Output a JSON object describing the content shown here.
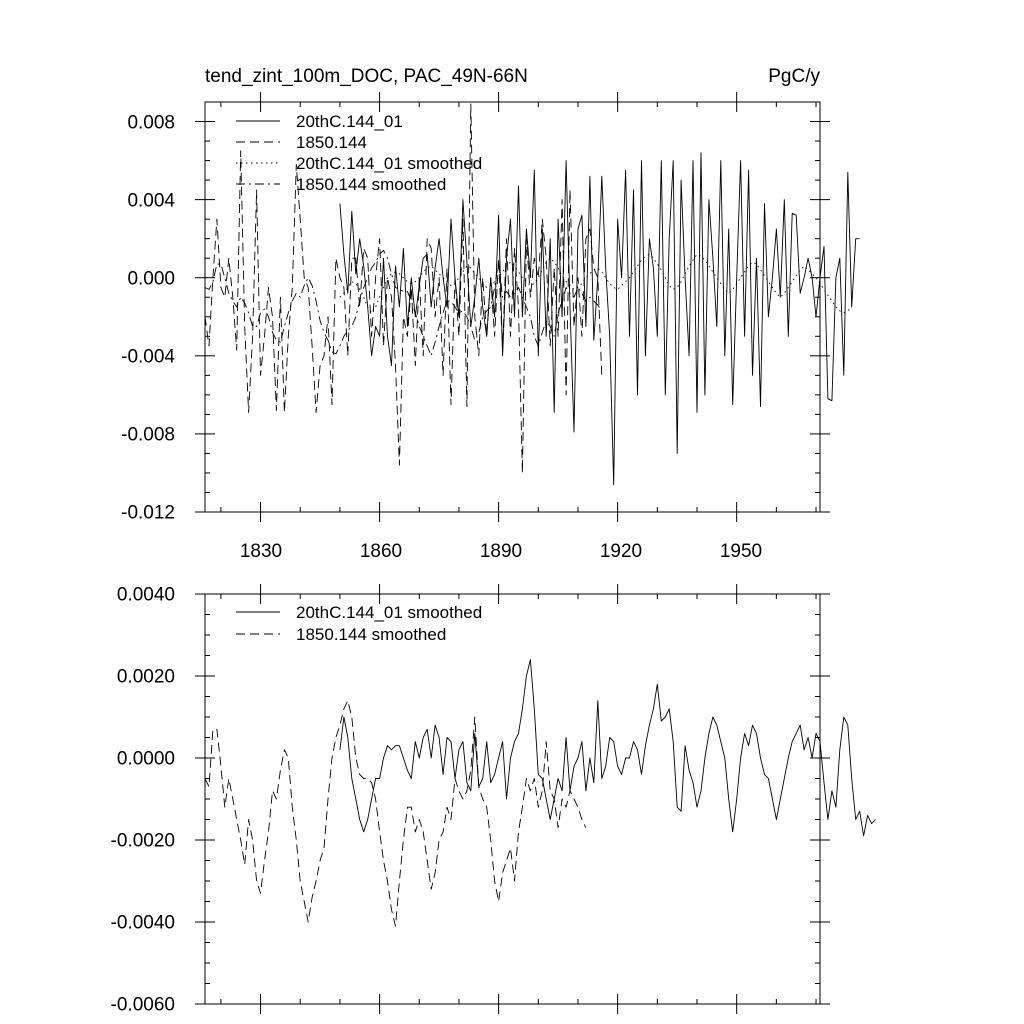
{
  "chart_data": [
    {
      "type": "line",
      "title": "tend_zint_100m_DOC, PAC_49N-66N",
      "units": "PgC/y",
      "xlabel": "",
      "ylabel": "",
      "xlim": [
        1816,
        1971
      ],
      "ylim": [
        -0.012,
        0.009
      ],
      "x_ticks": [
        1830,
        1860,
        1890,
        1920,
        1950
      ],
      "y_ticks": [
        0.008,
        0.004,
        0.0,
        -0.004,
        -0.008,
        -0.012
      ],
      "x_tick_labels": [
        "1830",
        "1860",
        "1890",
        "1920",
        "1950"
      ],
      "y_tick_labels": [
        "0.008",
        "0.004",
        "0.000",
        "-0.004",
        "-0.008",
        "-0.012"
      ],
      "legend": [
        "20thC.144_01",
        "1850.144",
        "20thC.144_01 smoothed",
        "1850.144 smoothed"
      ],
      "series": [
        {
          "name": "20thC.144_01",
          "dash": "solid",
          "x_start": 1850,
          "values": [
            0.0038,
            0.0012,
            -0.0008,
            0.0034,
            0.0002,
            0.002,
            0.0006,
            -0.0015,
            -0.004,
            -0.0025,
            -0.003,
            0.001,
            -0.003,
            -0.0045,
            0.0006,
            -0.0015,
            0.0015,
            -0.0025,
            0.0,
            -0.002,
            -0.0004,
            0.001,
            0.0012,
            -0.0015,
            0.0005,
            0.002,
            0.0,
            -0.0015,
            0.003,
            0.0,
            -0.002,
            0.004,
            0.0008,
            -0.0025,
            -0.001,
            0.001,
            -0.0015,
            -0.003,
            0.0,
            -0.002,
            0.0032,
            -0.004,
            0.001,
            0.003,
            -0.002,
            0.0047,
            -0.002,
            0.0025,
            0.0,
            0.0055,
            -0.004,
            0.0025,
            -0.003,
            0.002,
            -0.0069,
            0.003,
            -0.002,
            0.006,
            -0.0015,
            -0.0079,
            0.0025,
            0.0032,
            -0.0025,
            0.0052,
            -0.0032,
            0.0,
            0.0052,
            0.0005,
            -0.003,
            -0.0106,
            0.003,
            0.0,
            0.0055,
            -0.003,
            0.0045,
            -0.006,
            0.006,
            -0.004,
            0.002,
            0.0005,
            -0.003,
            0.006,
            -0.006,
            0.002,
            0.006,
            -0.009,
            0.005,
            0.0,
            -0.004,
            0.006,
            -0.0069,
            0.0064,
            -0.006,
            0.004,
            0.001,
            -0.0025,
            0.006,
            -0.004,
            0.0025,
            -0.0065,
            0.0,
            0.006,
            -0.003,
            0.0055,
            -0.005,
            0.001,
            -0.0066,
            0.0038,
            -0.002,
            0.0,
            0.0025,
            -0.001,
            0.004,
            -0.003,
            0.0033,
            0.0032,
            -0.0008,
            0.0,
            0.001,
            0.0,
            -0.002,
            0.0,
            0.0016,
            -0.0062,
            -0.0063,
            0.0,
            0.001,
            -0.005,
            0.0054,
            -0.0015,
            0.002,
            0.002
          ]
        },
        {
          "name": "1850.144",
          "dash": "dashed",
          "x_start": 1816,
          "values": [
            -0.002,
            -0.0035,
            0.0,
            0.003,
            -0.0005,
            -0.001,
            0.001,
            -0.001,
            -0.0037,
            0.0065,
            -0.0025,
            -0.0069,
            -0.003,
            0.0045,
            -0.005,
            -0.003,
            -0.0005,
            -0.002,
            -0.0068,
            -0.001,
            -0.0069,
            -0.003,
            -0.0005,
            0.0058,
            0.003,
            0.0,
            -0.0005,
            -0.0035,
            -0.0069,
            -0.0045,
            -0.004,
            -0.002,
            -0.0065,
            0.001,
            0.0,
            -0.0005,
            -0.004,
            0.001,
            0.001,
            -0.0015,
            0.0015,
            0.001,
            -0.003,
            0.0,
            0.002,
            -0.0035,
            0.0,
            -0.001,
            -0.0045,
            -0.0096,
            -0.002,
            -0.003,
            -0.0005,
            -0.0045,
            0.0,
            -0.004,
            0.002,
            0.0015,
            -0.002,
            0.0,
            -0.005,
            0.0005,
            -0.0065,
            0.0,
            -0.003,
            0.003,
            -0.0066,
            0.0089,
            -0.002,
            -0.004,
            0.0,
            -0.003,
            0.0,
            -0.003,
            0.001,
            -0.0037,
            0.002,
            -0.003,
            0.0015,
            -0.0015,
            -0.01,
            0.002,
            -0.001,
            0.001,
            0.0,
            0.003,
            0.001,
            -0.0035,
            0.0005,
            -0.003,
            0.004,
            -0.006,
            0.0045,
            -0.0025,
            0.0,
            -0.003,
            0.002,
            0.0025,
            0.0005,
            0.0,
            -0.005
          ]
        },
        {
          "name": "20thC.144_01 smoothed",
          "dash": "dotted",
          "x_start": 1850,
          "values": [
            -0.001,
            -0.0008,
            -0.0005,
            -0.0002,
            -0.0003,
            -0.0006,
            -0.001,
            -0.0015,
            -0.0018,
            -0.0015,
            -0.001,
            -0.0005,
            0.0,
            0.0002,
            0.0003,
            0.0002,
            0.0,
            -0.0002,
            -0.0003,
            -0.0002,
            0.0,
            0.0003,
            0.0005,
            0.0006,
            0.0004,
            0.0002,
            0.0,
            -0.0002,
            -0.0004,
            -0.0003,
            0.0,
            0.0003,
            0.0006,
            0.0005,
            0.0002,
            0.0,
            -0.0003,
            -0.0005,
            -0.0004,
            -0.0002,
            0.0,
            0.0003,
            0.0006,
            0.0008,
            0.0006,
            0.0003,
            0.0,
            -0.0002,
            -0.0004,
            -0.0003,
            0.0,
            0.0004,
            0.0008,
            0.001,
            0.0008,
            0.0005,
            0.0001,
            -0.0002,
            -0.0004,
            -0.0006,
            -0.0005,
            -0.0003,
            0.0,
            0.0002,
            0.0004,
            0.0005,
            0.0003,
            0.0,
            -0.0003,
            -0.0005,
            -0.0006,
            -0.0004,
            -0.0002,
            0.0,
            0.0003,
            0.0006,
            0.0009,
            0.0011,
            0.0012,
            0.001,
            0.0007,
            0.0004,
            0.0,
            -0.0004,
            -0.0006,
            -0.0005,
            -0.0002,
            0.0002,
            0.0006,
            0.0009,
            0.0012,
            0.0011,
            0.0009,
            0.0006,
            0.0003,
            0.0,
            -0.0003,
            -0.0006,
            -0.0008,
            -0.0006,
            -0.0003,
            0.0,
            0.0003,
            0.0006,
            0.0008,
            0.0007,
            0.0004,
            0.0001,
            -0.0002,
            -0.0005,
            -0.0008,
            -0.001,
            -0.0008,
            -0.0005,
            -0.0002,
            0.0001,
            0.0004,
            0.0006,
            0.0004,
            0.0002,
            0.0,
            -0.0003,
            -0.0006,
            -0.0009,
            -0.0012,
            -0.0015,
            -0.0017,
            -0.0018,
            -0.0017,
            -0.0015
          ]
        },
        {
          "name": "1850.144 smoothed",
          "dash": "dashdot",
          "x_start": 1816,
          "values": [
            -0.0005,
            -0.0006,
            -0.0002,
            0.0007,
            0.0007,
            0.0,
            -0.0008,
            -0.0012,
            -0.0015,
            -0.001,
            -0.0013,
            -0.0018,
            -0.0025,
            -0.0025,
            -0.0018,
            -0.0016,
            -0.002,
            -0.0028,
            -0.0032,
            -0.0033,
            -0.0025,
            -0.0018,
            -0.0012,
            -0.0008,
            -0.001,
            -0.0004,
            0.0,
            -0.0004,
            -0.0012,
            -0.0022,
            -0.0028,
            -0.0032,
            -0.0038,
            -0.0039,
            -0.0035,
            -0.003,
            -0.0027,
            -0.0025,
            -0.002,
            -0.0012,
            -0.0005,
            0.0,
            0.0005,
            0.0008,
            0.0012,
            0.0014,
            0.001,
            0.0002,
            -0.0005,
            -0.0006,
            -0.0007,
            -0.0007,
            -0.0012,
            -0.0018,
            -0.0025,
            -0.003,
            -0.0035,
            -0.004,
            -0.0033,
            -0.0025,
            -0.0018,
            -0.0012,
            -0.0012,
            -0.0015,
            -0.0018,
            -0.0017,
            -0.002,
            -0.0025,
            -0.0032,
            -0.0028,
            -0.002,
            -0.0017,
            -0.0015,
            -0.0005,
            0.0008,
            -0.001,
            -0.0007,
            -0.001,
            -0.0008,
            -0.0005,
            -0.001,
            -0.0015,
            -0.002,
            -0.003,
            -0.0035,
            -0.0028,
            -0.0022,
            -0.0025,
            -0.003,
            -0.0018,
            -0.0012,
            -0.0005,
            -0.0008,
            -0.001,
            -0.0005,
            -0.0008,
            -0.0012,
            -0.001,
            -0.0012,
            -0.0014,
            -0.0017
          ]
        }
      ]
    },
    {
      "type": "line",
      "title": "",
      "xlabel": "",
      "ylabel": "",
      "xlim": [
        1816,
        1971
      ],
      "ylim": [
        -0.006,
        0.004
      ],
      "x_ticks": [
        1830,
        1860,
        1890,
        1920,
        1950
      ],
      "y_ticks": [
        0.004,
        0.002,
        0.0,
        -0.002,
        -0.004,
        -0.006
      ],
      "y_tick_labels": [
        "0.0040",
        "0.0020",
        "0.0000",
        "-0.0020",
        "-0.0040",
        "-0.0060"
      ],
      "legend": [
        "20thC.144_01 smoothed",
        "1850.144 smoothed"
      ],
      "series": [
        {
          "name": "20thC.144_01 smoothed",
          "dash": "solid",
          "x_start": 1850,
          "values": [
            0.0002,
            0.001,
            0.0005,
            -0.0005,
            -0.001,
            -0.0015,
            -0.0018,
            -0.0015,
            -0.001,
            -0.0005,
            -0.0005,
            0.0,
            0.0003,
            0.0002,
            0.0003,
            0.0003,
            0.0,
            -0.0003,
            -0.0005,
            0.0004,
            0.0,
            0.0005,
            0.0007,
            0.0,
            0.0008,
            0.0005,
            -0.0004,
            0.0005,
            0.0004,
            -0.0005,
            0.0002,
            0.0004,
            -0.0006,
            -0.0008,
            0.0006,
            -0.0007,
            -0.0005,
            0.0004,
            -0.0006,
            -0.0004,
            0.0,
            0.0004,
            -0.001,
            0.0,
            0.0004,
            0.0006,
            0.0012,
            0.002,
            0.0024,
            0.0012,
            -0.0004,
            -0.0005,
            -0.001,
            -0.0015,
            -0.001,
            -0.0005,
            -0.0008,
            0.0005,
            -0.0008,
            -0.0002,
            0.0,
            0.0004,
            -0.0008,
            0.0,
            -0.0006,
            0.0014,
            -0.0005,
            -0.0002,
            0.0005,
            0.0004,
            -0.0002,
            -0.0004,
            0.0,
            0.0,
            0.0004,
            0.0002,
            -0.0004,
            0.0003,
            0.0008,
            0.0012,
            0.0018,
            0.0009,
            0.001,
            0.0012,
            0.0004,
            -0.0012,
            -0.0013,
            0.0003,
            -0.0003,
            -0.0006,
            -0.0012,
            -0.0008,
            0.0,
            0.0006,
            0.001,
            0.0008,
            0.0004,
            0.0,
            -0.001,
            -0.0018,
            -0.001,
            0.0,
            0.0006,
            0.0003,
            0.0008,
            0.0006,
            0.0,
            -0.0004,
            -0.0005,
            -0.001,
            -0.0015,
            -0.001,
            -0.0005,
            0.0,
            0.0004,
            0.0006,
            0.0008,
            0.0002,
            0.0005,
            0.0,
            0.0006,
            0.0004,
            -0.0006,
            -0.0015,
            -0.0008,
            -0.0012,
            0.0002,
            0.001,
            0.0008,
            -0.0005,
            -0.0015,
            -0.0013,
            -0.0019,
            -0.0014,
            -0.0016,
            -0.0015
          ]
        },
        {
          "name": "1850.144 smoothed",
          "dash": "dashed",
          "x_start": 1816,
          "values": [
            -0.0005,
            -0.0007,
            0.0007,
            0.0007,
            -0.0002,
            -0.0012,
            -0.0005,
            -0.001,
            -0.0015,
            -0.002,
            -0.0026,
            -0.0015,
            -0.002,
            -0.003,
            -0.0033,
            -0.0025,
            -0.0018,
            -0.0008,
            -0.001,
            -0.0003,
            0.0002,
            0.0,
            -0.0012,
            -0.002,
            -0.003,
            -0.0035,
            -0.004,
            -0.0034,
            -0.003,
            -0.0025,
            -0.0022,
            -0.001,
            0.0,
            0.0005,
            0.0008,
            0.0012,
            0.0014,
            0.001,
            0.0,
            -0.0004,
            -0.0005,
            -0.0005,
            -0.0006,
            -0.001,
            -0.0018,
            -0.0025,
            -0.003,
            -0.0037,
            -0.0041,
            -0.003,
            -0.002,
            -0.0012,
            -0.0012,
            -0.0018,
            -0.0015,
            -0.0018,
            -0.0025,
            -0.0032,
            -0.0028,
            -0.002,
            -0.0018,
            -0.0012,
            -0.0015,
            -0.0005,
            -0.0008,
            -0.001,
            -0.0008,
            -0.0003,
            0.001,
            -0.0007,
            -0.001,
            -0.0012,
            -0.002,
            -0.003,
            -0.0035,
            -0.0028,
            -0.0025,
            -0.0022,
            -0.003,
            -0.0018,
            -0.0012,
            -0.0005,
            -0.0008,
            -0.0005,
            -0.0012,
            -0.0008,
            0.0004,
            -0.0008,
            -0.001,
            -0.0017,
            -0.001,
            -0.0012,
            -0.0008,
            -0.001,
            -0.0012,
            -0.0015,
            -0.0017
          ]
        }
      ]
    }
  ]
}
